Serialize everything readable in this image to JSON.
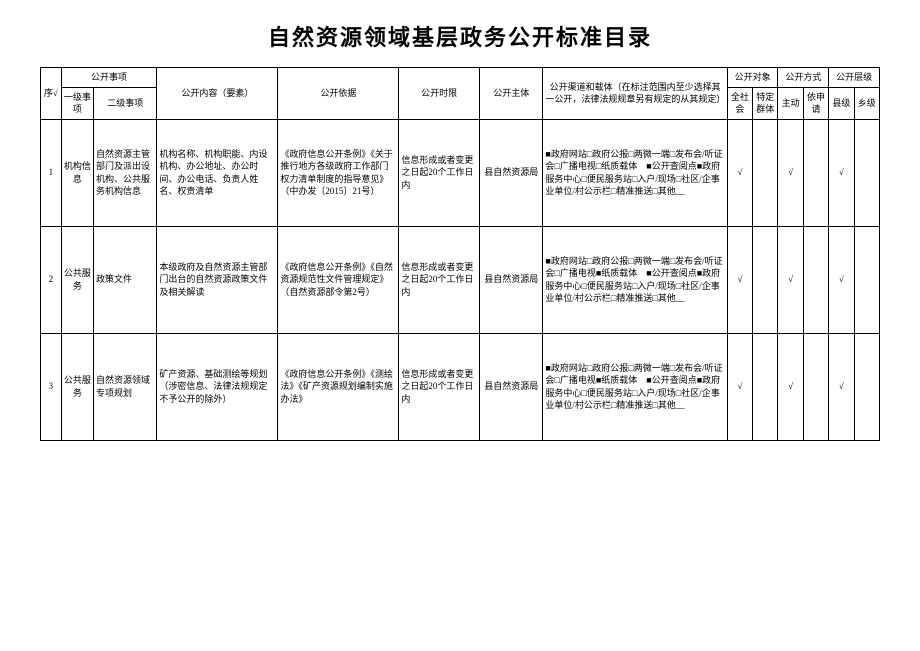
{
  "title": "自然资源领域基层政务公开标准目录",
  "headers": {
    "seq": "序√",
    "matter": "公开事项",
    "lv1": "一级事项",
    "lv2": "二级事项",
    "content": "公开内容（要素）",
    "basis": "公开依据",
    "timelimit": "公开时限",
    "subject": "公开主体",
    "channel": "公开渠道和载体（在标注范围内至少选择其一公开，法律法规规章另有规定的从其规定）",
    "audience": "公开对象",
    "society": "全社会",
    "group": "特定群体",
    "method": "公开方式",
    "active": "主动",
    "onrequest": "依申请",
    "level": "公开层级",
    "county": "县级",
    "township": "乡级"
  },
  "rows": [
    {
      "seq": "1",
      "lv1": "机构信息",
      "lv2": "自然资源主管部门及派出设机构、公共服务机构信息",
      "content": "机构名称、机构职能、内设机构、办公地址、办公时间、办公电话、负责人姓名、权责清单",
      "basis": "《政府信息公开条例》《关于推行地方各级政府工作部门权力清单制度的指导意见》（中办发〔2015〕21号）",
      "timelimit": "信息形成或者变更之日起20个工作日内",
      "subject": "县自然资源局",
      "channel": "■政府网站□政府公报□两微一端□发布会/听证会□广播电视□纸质载体　■公开查阅点■政府服务中心□便民服务站□入户/现场□社区/企事业单位/村公示栏□精准推送□其他__",
      "society": "√",
      "group": "",
      "active": "√",
      "onrequest": "",
      "county": "√",
      "township": ""
    },
    {
      "seq": "2",
      "lv1": "公共服务",
      "lv2": "政策文件",
      "content": "本级政府及自然资源主管部门出台的自然资源政策文件及相关解读",
      "basis": "《政府信息公开条例》《自然资源规范性文件管理规定》（自然资源部令第2号）",
      "timelimit": "信息形成或者变更之日起20个工作日内",
      "subject": "县自然资源局",
      "channel": "■政府网站□政府公报□两微一端□发布会/听证会□广播电视■纸质载体　■公开查阅点■政府服务中心□便民服务站□入户/现场□社区/企事业单位/村公示栏□精准推送□其他__",
      "society": "√",
      "group": "",
      "active": "√",
      "onrequest": "",
      "county": "√",
      "township": ""
    },
    {
      "seq": "3",
      "lv1": "公共服务",
      "lv2": "自然资源领域专项规划",
      "content": "矿产资源、基础测绘等规划（涉密信息、法律法规规定不予公开的除外）",
      "basis": "《政府信息公开条例》《测绘法》《矿产资源规划编制实施办法》",
      "timelimit": "信息形成或者变更之日起20个工作日内",
      "subject": "县自然资源局",
      "channel": "■政府网站□政府公报□两微一端□发布会/听证会□广播电视■纸质载体　■公开查阅点■政府服务中心□便民服务站□入户/现场□社区/企事业单位/村公示栏□精准推送□其他__",
      "society": "√",
      "group": "",
      "active": "√",
      "onrequest": "",
      "county": "√",
      "township": ""
    }
  ]
}
